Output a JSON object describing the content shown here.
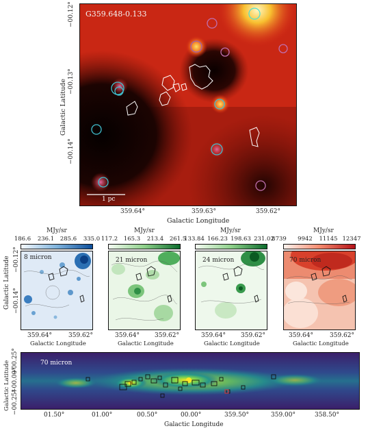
{
  "main_panel": {
    "source_name": "G359.648-0.133",
    "scalebar_label": "1 pc",
    "y_ticks": [
      "−00.12°",
      "−00.13°",
      "−00.14°"
    ],
    "x_ticks": [
      "359.64°",
      "359.63°",
      "359.62°"
    ],
    "xlabel": "Galactic Longitude",
    "ylabel": "Galactic Latitude"
  },
  "small_panels": [
    {
      "unit": "MJy/sr",
      "ticks": [
        "186.6",
        "236.1",
        "285.6",
        "335.0"
      ],
      "band": "8 micron",
      "cmap": "blue",
      "x_ticks": [
        "359.64°",
        "359.62°"
      ],
      "xlabel": "Galactic Longitude"
    },
    {
      "unit": "MJy/sr",
      "ticks": [
        "117.2",
        "165.3",
        "213.4",
        "261.5"
      ],
      "band": "21 micron",
      "cmap": "green",
      "x_ticks": [
        "359.64°",
        "359.62°"
      ],
      "xlabel": "Galactic Longitude"
    },
    {
      "unit": "MJy/sr",
      "ticks": [
        "133.84",
        "166.23",
        "198.63",
        "231.02"
      ],
      "band": "24 micron",
      "cmap": "green",
      "x_ticks": [
        "359.64°",
        "359.62°"
      ],
      "xlabel": "Galactic Longitude"
    },
    {
      "unit": "MJy/sr",
      "ticks": [
        "8739",
        "9942",
        "11145",
        "12347"
      ],
      "band": "70 micron",
      "cmap": "red",
      "x_ticks": [
        "359.64°",
        "359.62°"
      ],
      "xlabel": "Galactic Longitude"
    }
  ],
  "small_ylabel": "Galactic Latitude",
  "small_y_ticks": [
    "−00.12°",
    "−00.14°"
  ],
  "bottom_panel": {
    "band": "70 micron",
    "y_ticks": [
      "+00.25°",
      "+00.00°",
      "−00.25°"
    ],
    "x_ticks": [
      "01.50°",
      "01.00°",
      "00.50°",
      "00.00°",
      "359.50°",
      "359.00°",
      "358.50°"
    ],
    "xlabel": "Galactic Longitude",
    "ylabel": "Galactic Latitude"
  }
}
